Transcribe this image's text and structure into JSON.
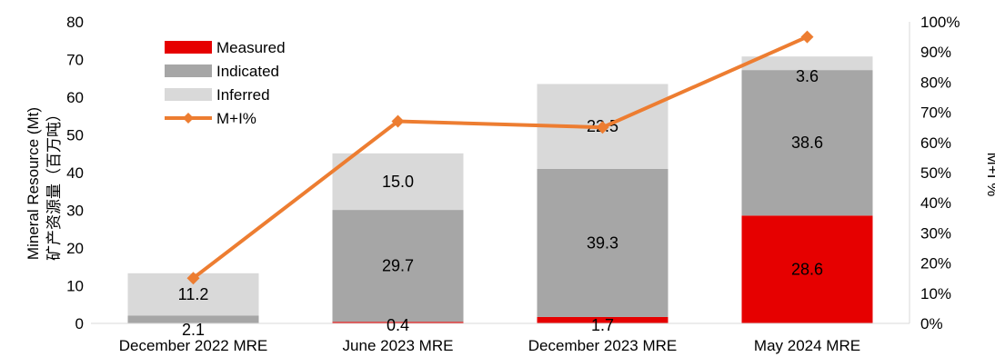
{
  "chart_data": {
    "type": "bar",
    "stacked": true,
    "categories": [
      "December 2022 MRE",
      "June 2023 MRE",
      "December 2023 MRE",
      "May 2024 MRE"
    ],
    "series": [
      {
        "name": "Measured",
        "values": [
          0,
          0.4,
          1.7,
          28.6
        ],
        "color": "#e60000",
        "labels": [
          "",
          "",
          "",
          "28.6"
        ]
      },
      {
        "name": "Indicated",
        "values": [
          2.1,
          29.7,
          39.3,
          38.6
        ],
        "color": "#a6a6a6",
        "labels": [
          "2.1",
          "29.7",
          "39.3",
          "38.6"
        ]
      },
      {
        "name": "Inferred",
        "values": [
          11.2,
          15.0,
          22.5,
          3.6
        ],
        "color": "#d9d9d9",
        "labels": [
          "11.2",
          "15.0",
          "22.5",
          "3.6"
        ]
      }
    ],
    "line_series": {
      "name": "M+I%",
      "values": [
        15,
        67,
        65,
        95
      ],
      "color": "#ed7d31",
      "axis": "right"
    },
    "extra_labels": [
      "0.4",
      "1.7"
    ],
    "ylabel": "Mineral Resource (Mt)",
    "ylabel_cn": "矿产资源量（百万吨）",
    "y2label": "M+I %",
    "ylim": [
      0,
      80
    ],
    "yticks": [
      0,
      10,
      20,
      30,
      40,
      50,
      60,
      70,
      80
    ],
    "y2lim": [
      0,
      100
    ],
    "y2ticks": [
      "0%",
      "10%",
      "20%",
      "30%",
      "40%",
      "50%",
      "60%",
      "70%",
      "80%",
      "90%",
      "100%"
    ],
    "legend_position": "top-left",
    "grid": false
  }
}
